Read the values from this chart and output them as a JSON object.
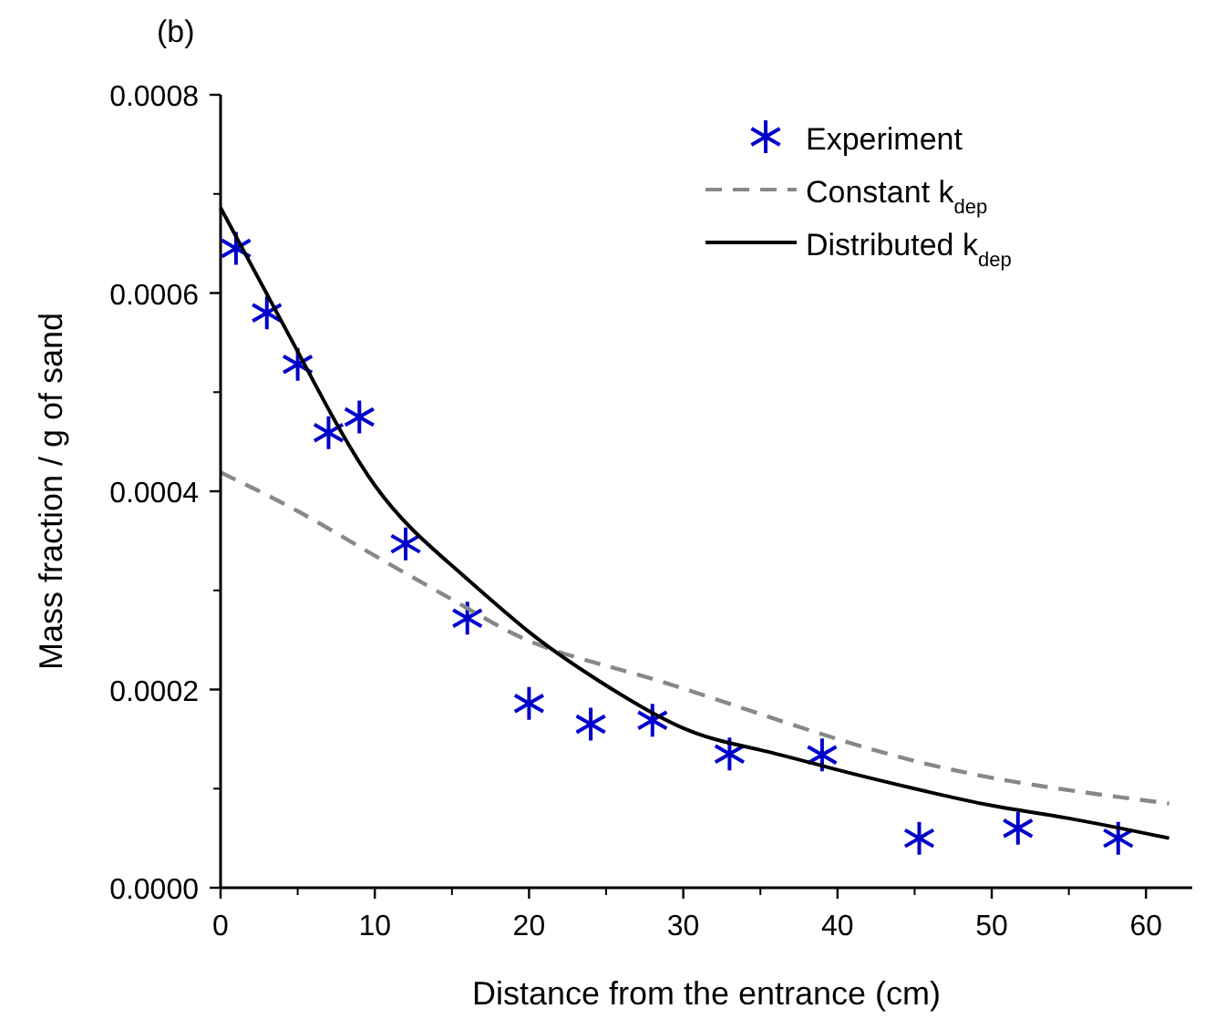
{
  "chart_data": {
    "type": "scatter",
    "title": "(b)",
    "xlabel": "Distance from the entrance (cm)",
    "ylabel": "Mass fraction / g of sand",
    "xlim": [
      0,
      63
    ],
    "xticks": [
      0,
      10,
      20,
      30,
      40,
      50,
      60
    ],
    "ylim": [
      0,
      0.0008
    ],
    "yticks": [
      {
        "value": 0,
        "label": "0.0000"
      },
      {
        "value": 0.0002,
        "label": "0.0002"
      },
      {
        "value": 0.0004,
        "label": "0.0004"
      },
      {
        "value": 0.0006,
        "label": "0.0006"
      },
      {
        "value": 0.0008,
        "label": "0.0008"
      }
    ],
    "legend": "top right",
    "grid": false,
    "series": [
      {
        "name": "Experiment",
        "color": "#0000cc",
        "marker": "cross",
        "x": [
          1,
          3,
          5,
          7,
          9,
          12,
          16,
          20,
          24,
          28,
          33,
          39,
          45.3,
          51.7,
          58.2
        ],
        "values": [
          0.000645,
          0.00058,
          0.000528,
          0.000459,
          0.000475,
          0.000347,
          0.000272,
          0.000186,
          0.000165,
          0.000169,
          0.000135,
          0.000134,
          5e-05,
          6e-05,
          5e-05
        ]
      },
      {
        "name": "Constant k$_{dep}$",
        "type": "line",
        "color": "#888888",
        "line_style": "dashed",
        "marker": "none",
        "x": [
          0,
          5,
          10,
          16,
          20,
          24.5,
          30,
          40,
          50,
          61.5
        ],
        "values": [
          0.000419,
          0.00038,
          0.000335,
          0.000282,
          0.000249,
          0.000226,
          0.000201,
          0.00015,
          0.000111,
          8.5e-05
        ]
      },
      {
        "name": "Distributed k$_{dep}$",
        "type": "line",
        "color": "#000000",
        "line_style": "solid",
        "marker": "none",
        "x": [
          0,
          5,
          10,
          15,
          20,
          24.5,
          30,
          35,
          40,
          45,
          50,
          55,
          61.5
        ],
        "values": [
          0.000686,
          0.000541,
          0.000406,
          0.000325,
          0.000258,
          0.000209,
          0.000161,
          0.000139,
          0.000119,
          0.0001,
          8.3e-05,
          7e-05,
          5e-05
        ]
      }
    ]
  }
}
